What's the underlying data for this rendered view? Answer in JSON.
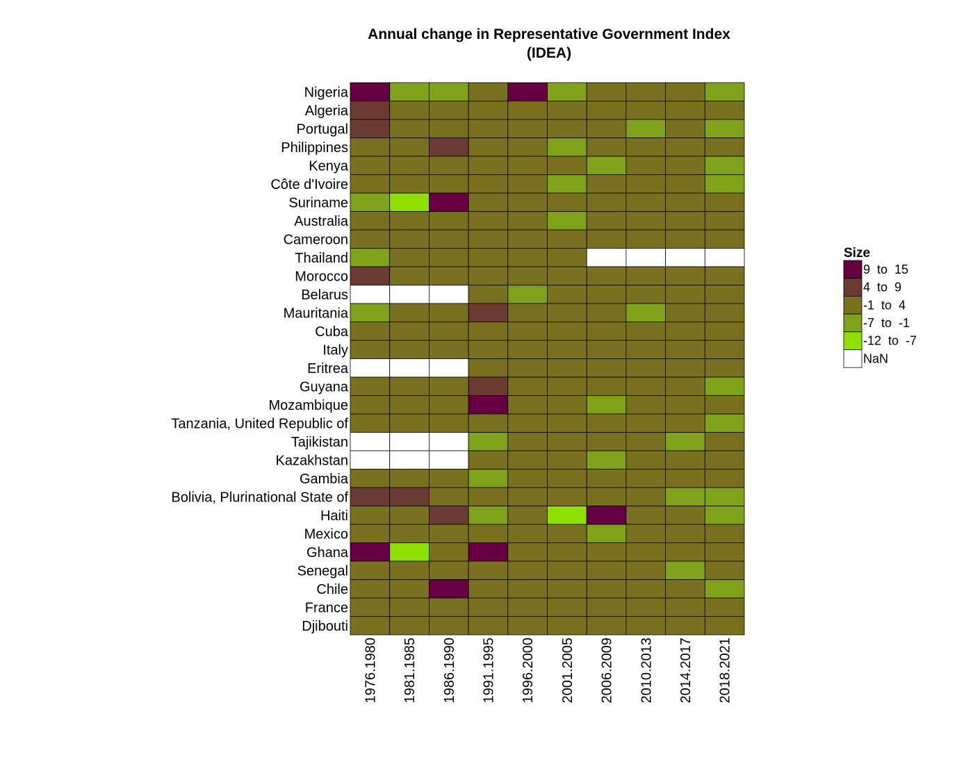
{
  "chart_data": {
    "type": "heatmap",
    "title": [
      "Annual change in Representative Government Index",
      "(IDEA)"
    ],
    "xlabel": "",
    "ylabel": "",
    "columns": [
      "1976.1980",
      "1981.1985",
      "1986.1990",
      "1991.1995",
      "1996.2000",
      "2001.2005",
      "2006.2009",
      "2010.2013",
      "2014.2017",
      "2018.2021"
    ],
    "rows": [
      {
        "country": "Nigeria",
        "cells": [
          0,
          3,
          3,
          2,
          0,
          3,
          2,
          2,
          2,
          3
        ]
      },
      {
        "country": "Algeria",
        "cells": [
          1,
          2,
          2,
          2,
          2,
          2,
          2,
          2,
          2,
          2
        ]
      },
      {
        "country": "Portugal",
        "cells": [
          1,
          2,
          2,
          2,
          2,
          2,
          2,
          3,
          2,
          3
        ]
      },
      {
        "country": "Philippines",
        "cells": [
          2,
          2,
          1,
          2,
          2,
          3,
          2,
          2,
          2,
          2
        ]
      },
      {
        "country": "Kenya",
        "cells": [
          2,
          2,
          2,
          2,
          2,
          2,
          3,
          2,
          2,
          3
        ]
      },
      {
        "country": "Côte d'Ivoire",
        "cells": [
          2,
          2,
          2,
          2,
          2,
          3,
          2,
          2,
          2,
          3
        ]
      },
      {
        "country": "Suriname",
        "cells": [
          3,
          4,
          0,
          2,
          2,
          2,
          2,
          2,
          2,
          2
        ]
      },
      {
        "country": "Australia",
        "cells": [
          2,
          2,
          2,
          2,
          2,
          3,
          2,
          2,
          2,
          2
        ]
      },
      {
        "country": "Cameroon",
        "cells": [
          2,
          2,
          2,
          2,
          2,
          2,
          2,
          2,
          2,
          2
        ]
      },
      {
        "country": "Thailand",
        "cells": [
          3,
          2,
          2,
          2,
          2,
          2,
          5,
          5,
          5,
          5
        ]
      },
      {
        "country": "Morocco",
        "cells": [
          1,
          2,
          2,
          2,
          2,
          2,
          2,
          2,
          2,
          2
        ]
      },
      {
        "country": "Belarus",
        "cells": [
          5,
          5,
          5,
          2,
          3,
          2,
          2,
          2,
          2,
          2
        ]
      },
      {
        "country": "Mauritania",
        "cells": [
          3,
          2,
          2,
          1,
          2,
          2,
          2,
          3,
          2,
          2
        ]
      },
      {
        "country": "Cuba",
        "cells": [
          2,
          2,
          2,
          2,
          2,
          2,
          2,
          2,
          2,
          2
        ]
      },
      {
        "country": "Italy",
        "cells": [
          2,
          2,
          2,
          2,
          2,
          2,
          2,
          2,
          2,
          2
        ]
      },
      {
        "country": "Eritrea",
        "cells": [
          5,
          5,
          5,
          2,
          2,
          2,
          2,
          2,
          2,
          2
        ]
      },
      {
        "country": "Guyana",
        "cells": [
          2,
          2,
          2,
          1,
          2,
          2,
          2,
          2,
          2,
          3
        ]
      },
      {
        "country": "Mozambique",
        "cells": [
          2,
          2,
          2,
          0,
          2,
          2,
          3,
          2,
          2,
          2
        ]
      },
      {
        "country": "Tanzania, United Republic of",
        "cells": [
          2,
          2,
          2,
          2,
          2,
          2,
          2,
          2,
          2,
          3
        ]
      },
      {
        "country": "Tajikistan",
        "cells": [
          5,
          5,
          5,
          3,
          2,
          2,
          2,
          2,
          3,
          2
        ]
      },
      {
        "country": "Kazakhstan",
        "cells": [
          5,
          5,
          5,
          2,
          2,
          2,
          3,
          2,
          2,
          2
        ]
      },
      {
        "country": "Gambia",
        "cells": [
          2,
          2,
          2,
          3,
          2,
          2,
          2,
          2,
          2,
          2
        ]
      },
      {
        "country": "Bolivia, Plurinational State of",
        "cells": [
          1,
          1,
          2,
          2,
          2,
          2,
          2,
          2,
          3,
          3
        ]
      },
      {
        "country": "Haiti",
        "cells": [
          2,
          2,
          1,
          3,
          2,
          4,
          0,
          2,
          2,
          3
        ]
      },
      {
        "country": "Mexico",
        "cells": [
          2,
          2,
          2,
          2,
          2,
          2,
          3,
          2,
          2,
          2
        ]
      },
      {
        "country": "Ghana",
        "cells": [
          0,
          4,
          2,
          0,
          2,
          2,
          2,
          2,
          2,
          2
        ]
      },
      {
        "country": "Senegal",
        "cells": [
          2,
          2,
          2,
          2,
          2,
          2,
          2,
          2,
          3,
          2
        ]
      },
      {
        "country": "Chile",
        "cells": [
          2,
          2,
          0,
          2,
          2,
          2,
          2,
          2,
          2,
          3
        ]
      },
      {
        "country": "France",
        "cells": [
          2,
          2,
          2,
          2,
          2,
          2,
          2,
          2,
          2,
          2
        ]
      },
      {
        "country": "Djibouti",
        "cells": [
          2,
          2,
          2,
          2,
          2,
          2,
          2,
          2,
          2,
          2
        ]
      }
    ],
    "legend": {
      "title": "Size",
      "placement": "right",
      "bins": [
        {
          "label": "9  to  15",
          "color": "#660042"
        },
        {
          "label": "4  to  9",
          "color": "#6b3a33"
        },
        {
          "label": "-1  to  4",
          "color": "#7a7120"
        },
        {
          "label": "-7  to  -1",
          "color": "#80a21a"
        },
        {
          "label": "-12  to  -7",
          "color": "#8fdf04"
        },
        {
          "label": "NaN",
          "color": "#ffffff"
        }
      ]
    }
  }
}
